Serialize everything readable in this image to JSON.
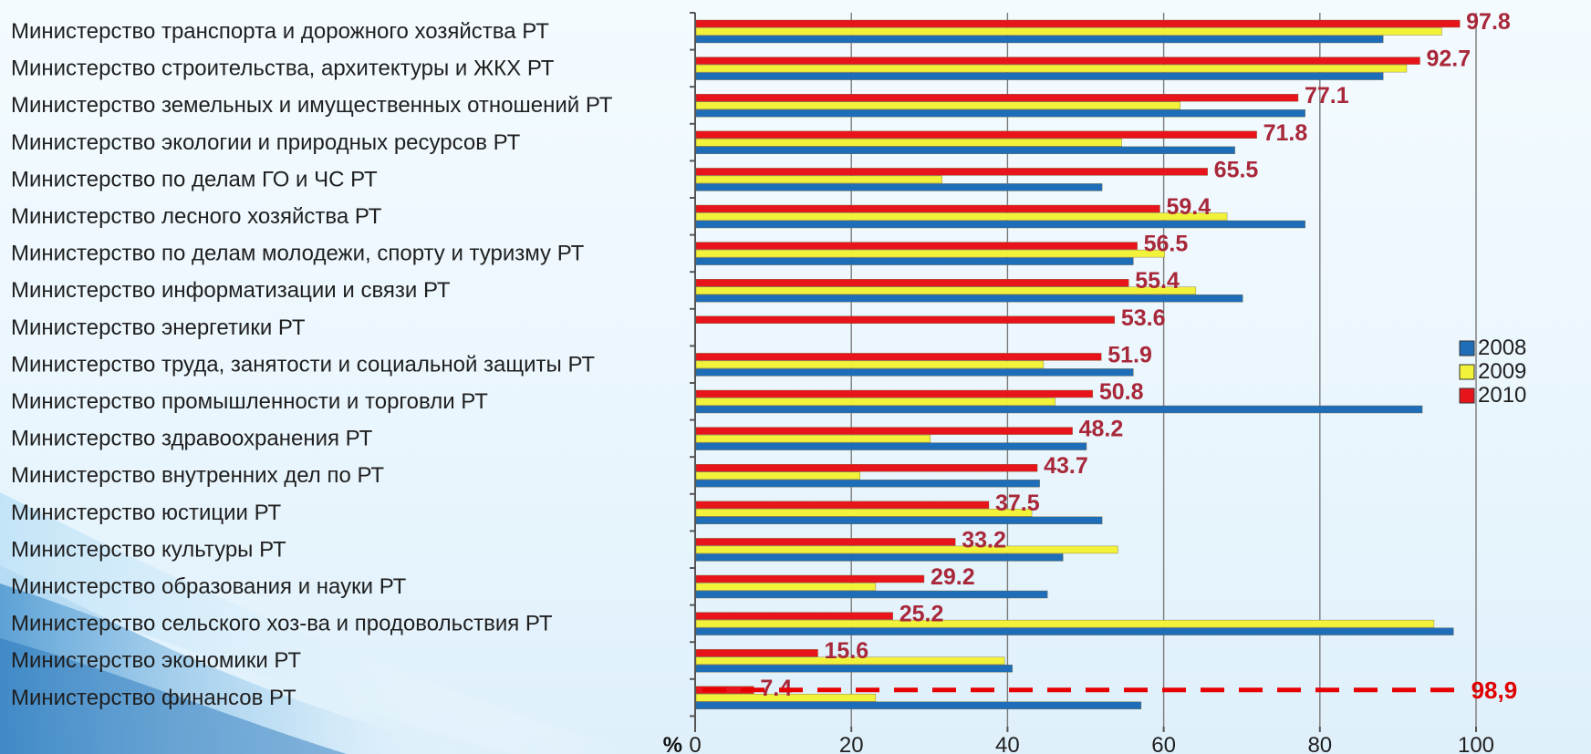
{
  "colors": {
    "series_2008": "#1d6db8",
    "series_2009": "#f2f23a",
    "series_2010": "#e8141b",
    "data_label": "#a8283a",
    "reference_line": "#e60000",
    "gridline": "#7a7a7a"
  },
  "chart_data": {
    "type": "bar",
    "orientation": "horizontal",
    "categories": [
      "Министерство транспорта и дорожного хозяйства РТ",
      "Министерство строительства, архитектуры и ЖКХ РТ",
      "Министерство земельных и имущественных отношений РТ",
      "Министерство экологии и природных ресурсов РТ",
      "Министерство по делам ГО и ЧС РТ",
      "Министерство лесного хозяйства РТ",
      "Министерство по делам молодежи, спорту и туризму РТ",
      "Министерство информатизации и связи РТ",
      "Министерство энергетики РТ",
      "Министерство труда, занятости и социальной защиты РТ",
      "Министерство промышленности и торговли РТ",
      "Министерство здравоохранения РТ",
      "Министерство внутренних дел по РТ",
      "Министерство юстиции РТ",
      "Министерство культуры РТ",
      "Министерство образования и науки РТ",
      "Министерство сельского хоз-ва и продовольствия РТ",
      "Министерство экономики РТ",
      "Министерство финансов РТ"
    ],
    "series": [
      {
        "name": "2008",
        "color": "#1d6db8",
        "values": [
          88,
          88,
          78,
          69,
          52,
          78,
          56,
          70,
          null,
          56,
          93,
          50,
          44,
          52,
          47,
          45,
          97,
          40.5,
          57
        ]
      },
      {
        "name": "2009",
        "color": "#f2f23a",
        "values": [
          95.5,
          91,
          62,
          54.5,
          31.5,
          68,
          60,
          64,
          null,
          44.5,
          46,
          30,
          21,
          43,
          54,
          23,
          94.5,
          39.5,
          23
        ]
      },
      {
        "name": "2010",
        "color": "#e8141b",
        "values": [
          97.8,
          92.7,
          77.1,
          71.8,
          65.5,
          59.4,
          56.5,
          55.4,
          53.6,
          51.9,
          50.8,
          48.2,
          43.7,
          37.5,
          33.2,
          29.2,
          25.2,
          15.6,
          7.4
        ],
        "labels": [
          "97.8",
          "92.7",
          "77.1",
          "71.8",
          "65.5",
          "59.4",
          "56.5",
          "55.4",
          "53.6",
          "51.9",
          "50.8",
          "48.2",
          "43.7",
          "37.5",
          "33.2",
          "29.2",
          "25.2",
          "15.6",
          "7.4"
        ]
      }
    ],
    "xlim": [
      0,
      100
    ],
    "xticks": [
      "0",
      "20",
      "40",
      "60",
      "80",
      "100"
    ],
    "xtick_values": [
      0,
      20,
      40,
      60,
      80,
      100
    ],
    "unit_label": "%",
    "grid": true,
    "legend": {
      "position": "right",
      "entries": [
        "2008",
        "2009",
        "2010"
      ]
    },
    "reference_line": {
      "value": 98.9,
      "label": "98,9",
      "style": "dashed",
      "category_index": 18
    }
  }
}
